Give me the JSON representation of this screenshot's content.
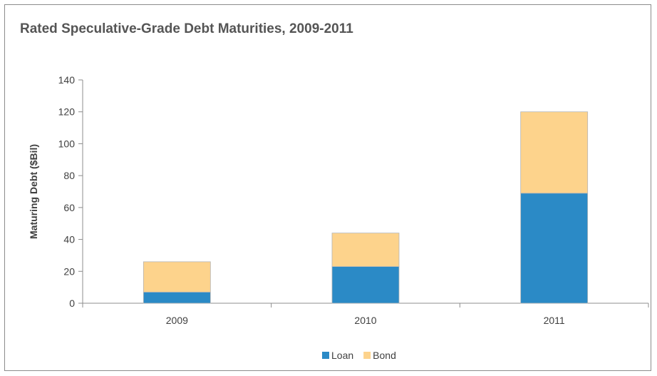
{
  "chart_data": {
    "type": "bar",
    "stacked": true,
    "title": "Rated Speculative-Grade Debt Maturities, 2009-2011",
    "xlabel": "",
    "ylabel": "Maturing Debt ($Bil)",
    "categories": [
      "2009",
      "2010",
      "2011"
    ],
    "series": [
      {
        "name": "Loan",
        "values": [
          7,
          23,
          69
        ],
        "color": "#2b8ac6"
      },
      {
        "name": "Bond",
        "values": [
          19,
          21,
          51
        ],
        "color": "#fdd38c"
      }
    ],
    "ylim": [
      0,
      140
    ],
    "yticks": [
      0,
      20,
      40,
      60,
      80,
      100,
      120,
      140
    ],
    "grid": false,
    "legend_position": "bottom"
  }
}
